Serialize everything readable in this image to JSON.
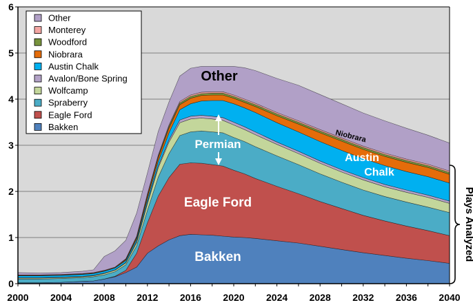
{
  "chart_data": {
    "type": "area",
    "stacked": true,
    "x": [
      2000,
      2002,
      2004,
      2006,
      2007,
      2008,
      2009,
      2010,
      2011,
      2012,
      2013,
      2014,
      2015,
      2016,
      2017,
      2018,
      2019,
      2020,
      2021,
      2022,
      2024,
      2026,
      2028,
      2030,
      2032,
      2034,
      2036,
      2038,
      2040
    ],
    "series": [
      {
        "name": "Bakken",
        "color": "#4f81bd",
        "values": [
          0.02,
          0.02,
          0.03,
          0.05,
          0.06,
          0.1,
          0.15,
          0.24,
          0.36,
          0.66,
          0.82,
          0.95,
          1.04,
          1.07,
          1.06,
          1.05,
          1.03,
          1.01,
          1.0,
          0.98,
          0.93,
          0.88,
          0.81,
          0.74,
          0.67,
          0.61,
          0.55,
          0.5,
          0.44
        ]
      },
      {
        "name": "Eagle Ford",
        "color": "#c0504d",
        "values": [
          0.0,
          0.0,
          0.0,
          0.0,
          0.0,
          0.0,
          0.01,
          0.05,
          0.3,
          0.66,
          1.08,
          1.35,
          1.55,
          1.55,
          1.55,
          1.53,
          1.52,
          1.45,
          1.38,
          1.3,
          1.18,
          1.07,
          0.97,
          0.89,
          0.81,
          0.75,
          0.7,
          0.65,
          0.6
        ]
      },
      {
        "name": "Spraberry",
        "color": "#4bacc6",
        "values": [
          0.08,
          0.08,
          0.08,
          0.08,
          0.09,
          0.09,
          0.1,
          0.12,
          0.16,
          0.27,
          0.41,
          0.52,
          0.62,
          0.67,
          0.7,
          0.71,
          0.72,
          0.71,
          0.7,
          0.69,
          0.66,
          0.63,
          0.6,
          0.57,
          0.55,
          0.53,
          0.52,
          0.51,
          0.5
        ]
      },
      {
        "name": "Wolfcamp",
        "color": "#c3d69b",
        "values": [
          0.02,
          0.02,
          0.02,
          0.02,
          0.02,
          0.03,
          0.03,
          0.04,
          0.07,
          0.14,
          0.2,
          0.25,
          0.28,
          0.28,
          0.28,
          0.28,
          0.27,
          0.27,
          0.26,
          0.26,
          0.25,
          0.24,
          0.23,
          0.22,
          0.22,
          0.21,
          0.21,
          0.21,
          0.2
        ]
      },
      {
        "name": "Avalon/Bone Spring",
        "color": "#b3a2c7",
        "values": [
          0.01,
          0.01,
          0.01,
          0.01,
          0.01,
          0.01,
          0.01,
          0.01,
          0.02,
          0.03,
          0.04,
          0.05,
          0.06,
          0.06,
          0.06,
          0.06,
          0.06,
          0.06,
          0.06,
          0.06,
          0.05,
          0.05,
          0.05,
          0.05,
          0.05,
          0.05,
          0.05,
          0.05,
          0.05
        ]
      },
      {
        "name": "Austin Chalk",
        "color": "#00b0f0",
        "values": [
          0.04,
          0.04,
          0.04,
          0.04,
          0.04,
          0.04,
          0.04,
          0.04,
          0.05,
          0.07,
          0.1,
          0.15,
          0.22,
          0.27,
          0.31,
          0.34,
          0.37,
          0.4,
          0.41,
          0.42,
          0.42,
          0.42,
          0.42,
          0.42,
          0.41,
          0.41,
          0.4,
          0.4,
          0.39
        ]
      },
      {
        "name": "Niobrara",
        "color": "#e46c0a",
        "values": [
          0.01,
          0.01,
          0.01,
          0.01,
          0.01,
          0.01,
          0.01,
          0.02,
          0.03,
          0.06,
          0.08,
          0.1,
          0.11,
          0.12,
          0.12,
          0.12,
          0.12,
          0.12,
          0.12,
          0.13,
          0.15,
          0.17,
          0.19,
          0.2,
          0.2,
          0.2,
          0.2,
          0.2,
          0.19
        ]
      },
      {
        "name": "Woodford",
        "color": "#77933c",
        "values": [
          0.0,
          0.0,
          0.0,
          0.0,
          0.0,
          0.0,
          0.0,
          0.01,
          0.02,
          0.03,
          0.03,
          0.04,
          0.04,
          0.04,
          0.04,
          0.04,
          0.04,
          0.04,
          0.04,
          0.04,
          0.04,
          0.04,
          0.04,
          0.04,
          0.04,
          0.04,
          0.04,
          0.04,
          0.04
        ]
      },
      {
        "name": "Monterey",
        "color": "#f4a6a3",
        "values": [
          0.01,
          0.01,
          0.01,
          0.01,
          0.01,
          0.01,
          0.01,
          0.01,
          0.02,
          0.03,
          0.03,
          0.03,
          0.03,
          0.03,
          0.03,
          0.03,
          0.03,
          0.03,
          0.03,
          0.03,
          0.03,
          0.03,
          0.03,
          0.03,
          0.03,
          0.03,
          0.03,
          0.03,
          0.03
        ]
      },
      {
        "name": "Other",
        "color": "#b1a0c7",
        "values": [
          0.05,
          0.04,
          0.04,
          0.05,
          0.06,
          0.3,
          0.35,
          0.4,
          0.5,
          0.45,
          0.51,
          0.5,
          0.55,
          0.58,
          0.56,
          0.55,
          0.55,
          0.62,
          0.68,
          0.71,
          0.74,
          0.77,
          0.76,
          0.74,
          0.72,
          0.7,
          0.67,
          0.63,
          0.61
        ]
      }
    ],
    "xlim": [
      2000,
      2040
    ],
    "ylim": [
      0,
      6
    ],
    "xticks": [
      "2000",
      "2004",
      "2008",
      "2012",
      "2016",
      "2020",
      "2024",
      "2028",
      "2032",
      "2036",
      "2040"
    ],
    "yticks": [
      "0",
      "1",
      "2",
      "3",
      "4",
      "5",
      "6"
    ],
    "legend_position": "top-left",
    "grid": "horizontal",
    "annotations": {
      "other": "Other",
      "permian": "Permian",
      "eagle_ford": "Eagle Ford",
      "bakken": "Bakken",
      "niobrara": "Niobrara",
      "austin_chalk_1": "Austin",
      "austin_chalk_2": "Chalk",
      "bracket": "Plays Analyzed"
    }
  }
}
